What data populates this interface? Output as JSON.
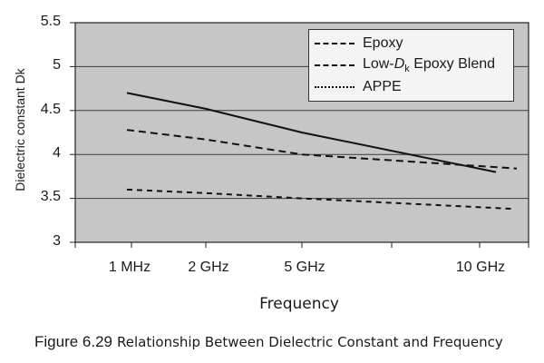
{
  "chart_data": {
    "type": "line",
    "title": "",
    "xlabel": "Frequency",
    "ylabel": "Dielectric constant Dk",
    "categories": [
      "1 MHz",
      "2 GHz",
      "5 GHz",
      "10 GHz"
    ],
    "y_ticks": [
      "5.5",
      "5",
      "4.5",
      "4",
      "3.5",
      "3"
    ],
    "ylim": [
      3,
      5.5
    ],
    "grid": true,
    "legend_position": "upper right",
    "series": [
      {
        "name": "Epoxy",
        "style": "solid",
        "x": [
          "1 MHz",
          "2 GHz",
          "5 GHz",
          "10 GHz"
        ],
        "values": [
          4.7,
          4.52,
          4.25,
          3.8
        ]
      },
      {
        "name": "Low-Dk Epoxy Blend",
        "style": "dashed",
        "x": [
          "1 MHz",
          "2 GHz",
          "5 GHz",
          "10 GHz"
        ],
        "values": [
          4.28,
          4.17,
          4.0,
          3.84
        ]
      },
      {
        "name": "APPE",
        "style": "dotted",
        "x": [
          "1 MHz",
          "2 GHz",
          "5 GHz",
          "10 GHz"
        ],
        "values": [
          3.6,
          3.56,
          3.5,
          3.38
        ]
      }
    ]
  },
  "axes": {
    "ylabel": "Dielectric constant Dk",
    "xlabel": "Frequency",
    "y_ticks": [
      "5.5",
      "5",
      "4.5",
      "4",
      "3.5",
      "3"
    ],
    "x_ticks": [
      "1 MHz",
      "2 GHz",
      "5 GHz",
      "10 GHz"
    ]
  },
  "legend": {
    "items": [
      {
        "label": "Epoxy"
      },
      {
        "label_pre": "Low-",
        "label_d": "D",
        "label_sub": "k",
        "label_post": " Epoxy Blend"
      },
      {
        "label": "APPE"
      }
    ]
  },
  "caption": {
    "figure_number": "Figure 6.29",
    "text": "Relationship Between Dielectric Constant and Frequency"
  },
  "colors": {
    "plot_background": "#c6c6c6",
    "line_color": "#111111",
    "grid_color": "#3a3a3a"
  }
}
